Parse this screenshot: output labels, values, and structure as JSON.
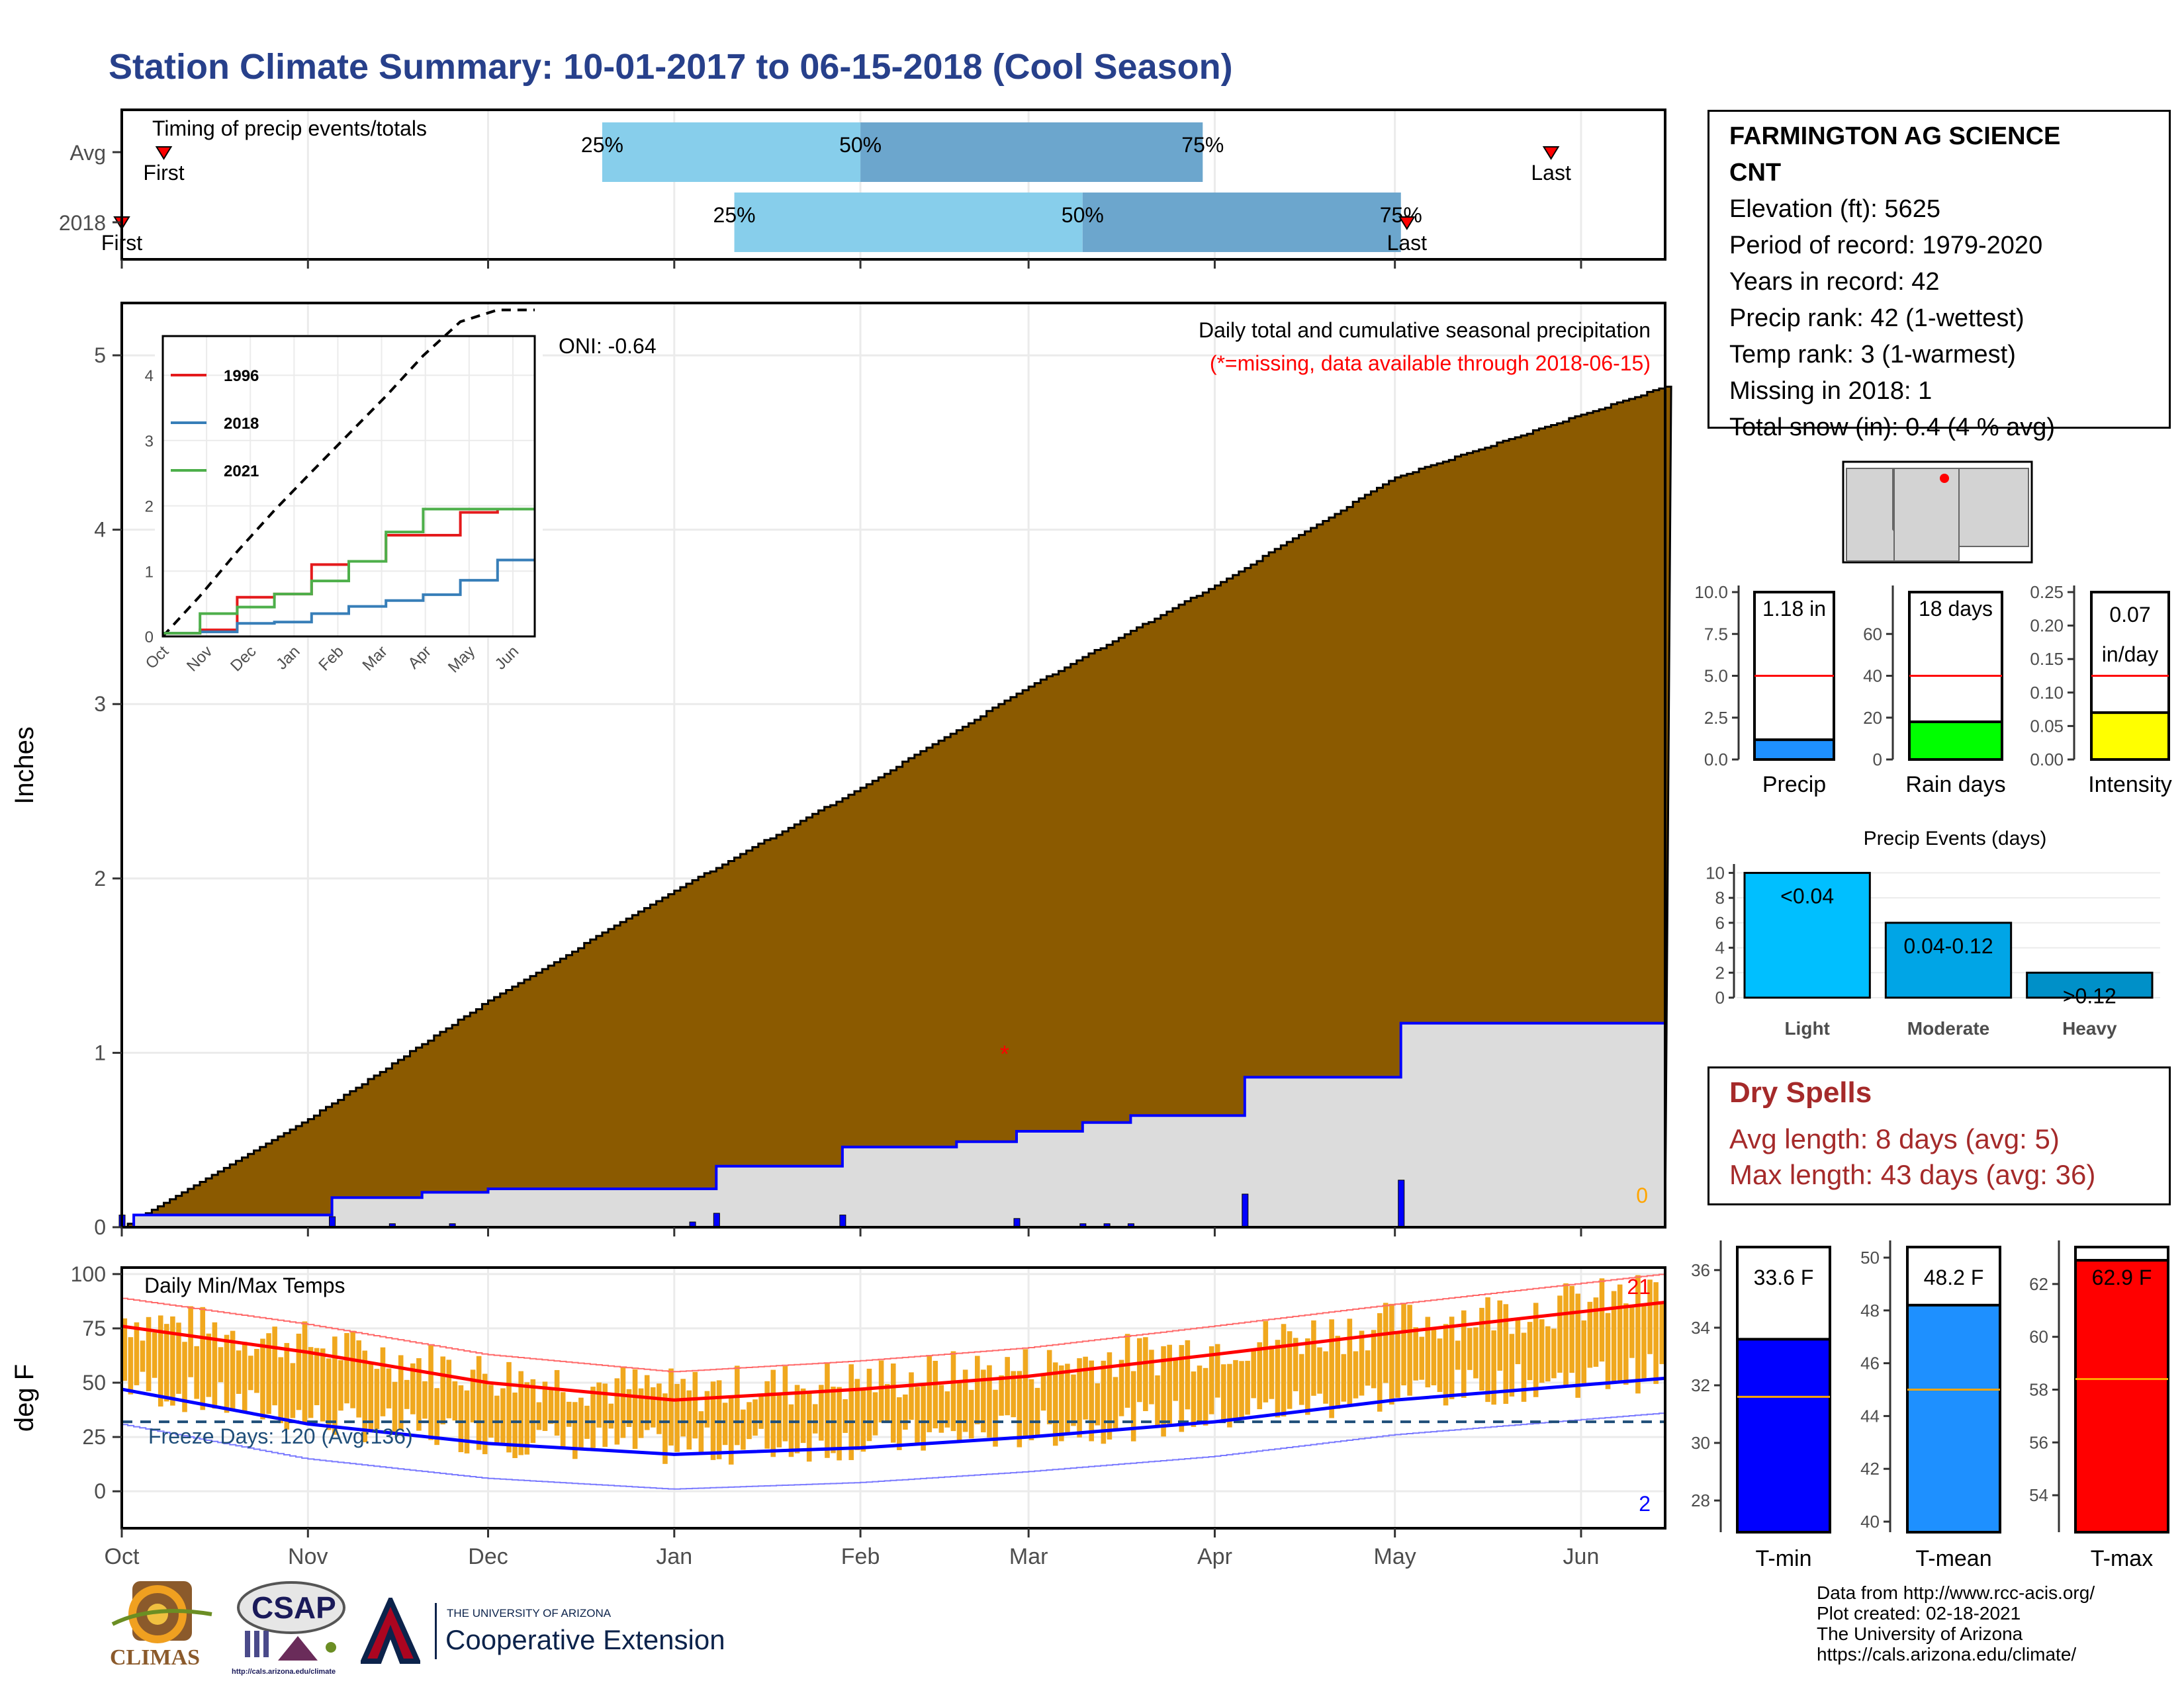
{
  "header": {
    "title": "Station Climate Summary: 10-01-2017 to 06-15-2018 (Cool Season)"
  },
  "station": {
    "name_line1": "FARMINGTON AG SCIENCE",
    "name_line2": "CNT",
    "elevation": "Elevation (ft): 5625",
    "period": "Period of record: 1979-2020",
    "years": "Years in record: 42",
    "precip_rank": "Precip rank: 42 (1-wettest)",
    "temp_rank": "Temp rank: 3 (1-warmest)",
    "missing": "Missing in 2018: 1",
    "snow": "Total snow (in): 0.4 (4 % avg)"
  },
  "dry_spells": {
    "title": "Dry Spells",
    "avg": "Avg length: 8 days (avg: 5)",
    "max": "Max length: 43 days (avg: 36)"
  },
  "credits": {
    "line1": "Data from http://www.rcc-acis.org/",
    "line2": "Plot created: 02-18-2021",
    "line3": "The University of Arizona",
    "line4": "https://cals.arizona.edu/climate/"
  },
  "logos": {
    "climas": "CLIMAS",
    "csap": "CSAP",
    "csap_url": "http://cals.arizona.edu/climate",
    "ua_small": "THE UNIVERSITY OF ARIZONA",
    "ua_big": "Cooperative Extension"
  },
  "colors": {
    "title": "#27408b",
    "cumulative_fill": "#8b5a00",
    "avg_fill": "#dcdcdc",
    "daily_precip": "#0000ff",
    "timing_light": "#87ceeb",
    "timing_dark": "#6ca6cd",
    "temp_bar": "#f0a81e",
    "tmax": "#ff0000",
    "tmin": "#0000ff",
    "precip_bar": "#1e90ff",
    "rain_bar": "#00ff00",
    "intensity_bar": "#ffff00",
    "events_light": "#00bfff",
    "events_moderate": "#00a5e6",
    "events_heavy": "#0090c8"
  },
  "chart_data": [
    {
      "type": "bar",
      "title": "Timing of precip events/totals",
      "categories": [
        "Avg",
        "2018"
      ],
      "x_ticks": [
        "Oct",
        "Nov",
        "Dec",
        "Jan",
        "Feb",
        "Mar",
        "Apr",
        "May",
        "Jun"
      ],
      "series": [
        {
          "name": "Avg",
          "first": "2017-10-08",
          "p25": "2017-12-20",
          "p50": "2018-02-01",
          "p75": "2018-03-30",
          "last": "2018-05-27",
          "labels": [
            "First",
            "25%",
            "50%",
            "75%",
            "Last"
          ]
        },
        {
          "name": "2018",
          "first": "2017-10-01",
          "p25": "2018-01-11",
          "p50": "2018-03-10",
          "p75": "2018-05-02",
          "last": "2018-05-03",
          "labels": [
            "First",
            "25%",
            "50%",
            "75%",
            "Last"
          ]
        }
      ]
    },
    {
      "type": "area",
      "title": "Daily total and cumulative seasonal precipitation",
      "subtitle": "(*=missing, data available through 2018-06-15)",
      "ylabel": "Inches",
      "ylim": [
        0,
        5.3
      ],
      "y_ticks": [
        0,
        1,
        2,
        3,
        4,
        5
      ],
      "x_ticks": [
        "Oct",
        "Nov",
        "Dec",
        "Jan",
        "Feb",
        "Mar",
        "Apr",
        "May",
        "Jun"
      ],
      "annotation_oni": "ONI: -0.64",
      "snow_label": "0",
      "average_cumulative": {
        "x": [
          "2017-10-01",
          "2017-11-01",
          "2017-12-01",
          "2018-01-01",
          "2018-02-01",
          "2018-03-01",
          "2018-04-01",
          "2018-05-01",
          "2018-06-15"
        ],
        "y": [
          0.0,
          0.62,
          1.3,
          1.93,
          2.52,
          3.1,
          3.68,
          4.3,
          4.82
        ]
      },
      "cumulative_2018": {
        "x": [
          "2017-10-01",
          "2017-10-03",
          "2017-11-01",
          "2017-11-05",
          "2017-11-20",
          "2017-12-01",
          "2018-01-04",
          "2018-01-08",
          "2018-01-29",
          "2018-02-17",
          "2018-02-27",
          "2018-03-10",
          "2018-03-18",
          "2018-04-06",
          "2018-04-30",
          "2018-05-02",
          "2018-06-15"
        ],
        "y": [
          0.0,
          0.07,
          0.07,
          0.17,
          0.2,
          0.22,
          0.22,
          0.35,
          0.46,
          0.49,
          0.55,
          0.6,
          0.64,
          0.86,
          0.86,
          1.17,
          1.17
        ]
      },
      "daily_2018": {
        "x": [
          "2017-10-01",
          "2017-11-05",
          "2017-11-15",
          "2017-11-25",
          "2018-01-04",
          "2018-01-08",
          "2018-01-29",
          "2018-02-27",
          "2018-03-10",
          "2018-03-14",
          "2018-03-18",
          "2018-04-06",
          "2018-05-02"
        ],
        "y": [
          0.07,
          0.06,
          0.02,
          0.02,
          0.03,
          0.08,
          0.07,
          0.05,
          0.02,
          0.02,
          0.02,
          0.19,
          0.27
        ]
      },
      "missing_days": [
        {
          "x": "2018-02-25",
          "y": 1.0
        }
      ],
      "inset": {
        "type": "line",
        "x_ticks": [
          "Oct",
          "Nov",
          "Dec",
          "Jan",
          "Feb",
          "Mar",
          "Apr",
          "May",
          "Jun"
        ],
        "y_ticks": [
          0,
          1,
          2,
          3,
          4
        ],
        "ylim": [
          0,
          4.6
        ],
        "series": [
          {
            "name": "1996",
            "color": "#e41a1c",
            "y": [
              0.05,
              0.1,
              0.6,
              0.65,
              1.1,
              1.15,
              1.55,
              1.55,
              1.9,
              1.95,
              1.95
            ]
          },
          {
            "name": "2018",
            "color": "#377eb8",
            "y": [
              0.05,
              0.07,
              0.2,
              0.22,
              0.35,
              0.46,
              0.55,
              0.64,
              0.86,
              1.17,
              1.17
            ]
          },
          {
            "name": "2021",
            "color": "#4daf4a",
            "y": [
              0.05,
              0.35,
              0.45,
              0.65,
              0.85,
              1.15,
              1.6,
              1.95,
              1.95,
              1.95,
              1.95
            ]
          }
        ],
        "average_dashed": [
          0.0,
          0.62,
          1.3,
          1.93,
          2.52,
          3.1,
          3.68,
          4.3,
          4.82,
          5.0,
          5.0
        ]
      }
    },
    {
      "type": "line",
      "title": "Daily Min/Max Temps",
      "ylabel": "deg F",
      "ylim": [
        -17,
        103
      ],
      "y_ticks": [
        0,
        25,
        50,
        75,
        100
      ],
      "x_ticks": [
        "Oct",
        "Nov",
        "Dec",
        "Jan",
        "Feb",
        "Mar",
        "Apr",
        "May",
        "Jun"
      ],
      "freeze_label": "Freeze Days: 120 (Avg:136)",
      "freeze_line": 32,
      "record_high_count": "21",
      "record_low_count": "2",
      "avg_tmax": {
        "x": [
          "2017-10-01",
          "2017-11-01",
          "2017-12-01",
          "2018-01-01",
          "2018-02-01",
          "2018-03-01",
          "2018-04-01",
          "2018-05-01",
          "2018-06-15"
        ],
        "y": [
          76,
          64,
          50,
          42,
          47,
          53,
          63,
          73,
          87
        ]
      },
      "avg_tmin": {
        "x": [
          "2017-10-01",
          "2017-11-01",
          "2017-12-01",
          "2018-01-01",
          "2018-02-01",
          "2018-03-01",
          "2018-04-01",
          "2018-05-01",
          "2018-06-15"
        ],
        "y": [
          47,
          31,
          22,
          17,
          20,
          25,
          32,
          42,
          52
        ]
      }
    },
    {
      "type": "bar",
      "xlabel": "Precip",
      "categories": [
        "Precip"
      ],
      "values": [
        1.18
      ],
      "label": "1.18 in",
      "avg": 5.0,
      "ylim": [
        0,
        10
      ],
      "y_ticks": [
        "0.0",
        "2.5",
        "5.0",
        "7.5",
        "10.0"
      ]
    },
    {
      "type": "bar",
      "xlabel": "Rain days",
      "categories": [
        "Rain days"
      ],
      "values": [
        18
      ],
      "label": "18 days",
      "avg": 40,
      "ylim": [
        0,
        80
      ],
      "y_ticks": [
        "0",
        "20",
        "40",
        "60"
      ]
    },
    {
      "type": "bar",
      "xlabel": "Intensity",
      "categories": [
        "Intensity"
      ],
      "values": [
        0.07
      ],
      "label": "0.07",
      "label2": "in/day",
      "avg": 0.125,
      "ylim": [
        0,
        0.25
      ],
      "y_ticks": [
        "0.00",
        "0.05",
        "0.10",
        "0.15",
        "0.20",
        "0.25"
      ]
    },
    {
      "type": "bar",
      "title": "Precip Events (days)",
      "categories": [
        "Light",
        "Moderate",
        "Heavy"
      ],
      "values": [
        10,
        6,
        2
      ],
      "labels": [
        "<0.04",
        "0.04-0.12",
        ">0.12"
      ],
      "ylim": [
        0,
        10.5
      ],
      "y_ticks": [
        0,
        2,
        4,
        6,
        8,
        10
      ]
    },
    {
      "type": "bar",
      "xlabel": "T-min",
      "categories": [
        "T-min"
      ],
      "values": [
        33.6
      ],
      "label": "33.6 F",
      "avg": 31.6,
      "ylim": [
        26.9,
        36.8
      ],
      "y_ticks": [
        28,
        30,
        32,
        34,
        36
      ]
    },
    {
      "type": "bar",
      "xlabel": "T-mean",
      "categories": [
        "T-mean"
      ],
      "values": [
        48.2
      ],
      "label": "48.2 F",
      "avg": 45.0,
      "ylim": [
        39.6,
        50.4
      ],
      "y_ticks": [
        40,
        42,
        44,
        46,
        48,
        50
      ]
    },
    {
      "type": "bar",
      "xlabel": "T-max",
      "categories": [
        "T-max"
      ],
      "values": [
        62.9
      ],
      "label": "62.9 F",
      "avg": 58.4,
      "ylim": [
        52.6,
        63.4
      ],
      "y_ticks": [
        54,
        56,
        58,
        60,
        62
      ]
    }
  ]
}
